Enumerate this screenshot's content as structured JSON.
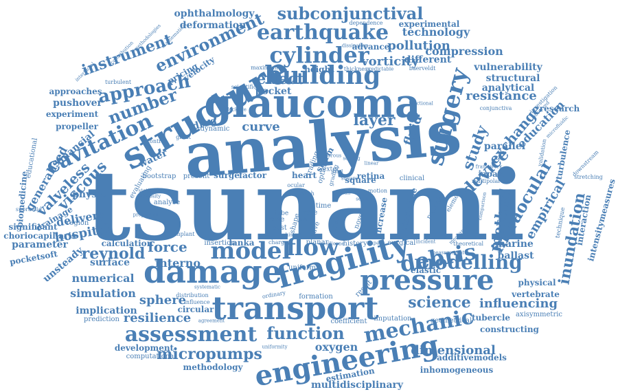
{
  "color": "#4a7fb5",
  "words": [
    "tsunami",
    "analysis",
    "glaucoma",
    "structure",
    "damage",
    "fragility",
    "transport",
    "pressure",
    "engineering",
    "model",
    "flow",
    "building",
    "surgery",
    "cylinder",
    "earthquake",
    "subconjunctival",
    "environment",
    "mechanic",
    "debris",
    "assessment",
    "function",
    "modelling",
    "cavitation",
    "approach",
    "number",
    "device",
    "intraocular",
    "layer",
    "effect",
    "instrument",
    "science",
    "micropumps",
    "viscous",
    "valveless",
    "method",
    "study",
    "inundation",
    "exchange",
    "reynold",
    "force",
    "pollution",
    "compression",
    "vorticity",
    "technology",
    "resistance",
    "education",
    "empirical",
    "resilience",
    "influencing",
    "sphere",
    "simulation",
    "dimensional",
    "oxygen",
    "hospital",
    "delivery",
    "numerical",
    "interno",
    "curve",
    "fluid",
    "drag",
    "financial",
    "generalised",
    "physic",
    "drainage",
    "parallel",
    "marine",
    "ballast",
    "vulnerability",
    "structural",
    "analytical",
    "ophthalmology",
    "deformation",
    "experimental",
    "advance",
    "different",
    "pocket",
    "velocity",
    "pricing",
    "pushover",
    "experiment",
    "propeller",
    "implication",
    "circular",
    "surface",
    "calculation",
    "parameter",
    "significant",
    "choriocapillaris",
    "pocketsoft",
    "unsteady",
    "biomedicine",
    "educational",
    "research",
    "turbulence",
    "intensitymeasures",
    "interaction",
    "multidisciplinary",
    "estimation",
    "inhomogeneous",
    "methodology",
    "development",
    "computational",
    "additivemodels",
    "constructing",
    "tubercle",
    "vertebrate",
    "physical",
    "axisymmetric",
    "japan",
    "multipolar",
    "framework",
    "retina",
    "storm",
    "surge",
    "factor",
    "heart",
    "tube",
    "time",
    "case",
    "past",
    "shape",
    "history",
    "charge",
    "planar",
    "surgical",
    "elastic",
    "uniform",
    "formation",
    "result",
    "lanka",
    "insertion",
    "region",
    "water",
    "bootstrap",
    "present",
    "prediction",
    "agreement",
    "coefficient",
    "imputation",
    "geometrical",
    "uniformity",
    "height",
    "thickness",
    "maximum",
    "scientific",
    "blockage",
    "dynamic",
    "implant",
    "distribution",
    "influence",
    "approaches",
    "turbulent",
    "interfacial",
    "contribution",
    "methodologies",
    "mathematical",
    "dependence",
    "dissipation",
    "baerveldt",
    "conjunctiva",
    "investigation",
    "microfluidic",
    "stretching",
    "downstream",
    "validation",
    "observed",
    "square",
    "clinical",
    "increase",
    "comparison",
    "pancake",
    "discipline",
    "element",
    "analyse",
    "statistical",
    "viscosity",
    "properties",
    "evaluating",
    "supramid",
    "control",
    "great",
    "ordinary",
    "systematic",
    "theoretical",
    "incident",
    "measurement",
    "mechanism",
    "impact",
    "silicone",
    "history",
    "technique",
    "scalar",
    "novel",
    "wave",
    "rate",
    "mesh",
    "optical",
    "trading",
    "grading",
    "linear",
    "axial",
    "scaling",
    "porous",
    "suture",
    "butan",
    "square",
    "motion",
    "sensor",
    "exter",
    "ocular",
    "functional",
    "predictable"
  ]
}
